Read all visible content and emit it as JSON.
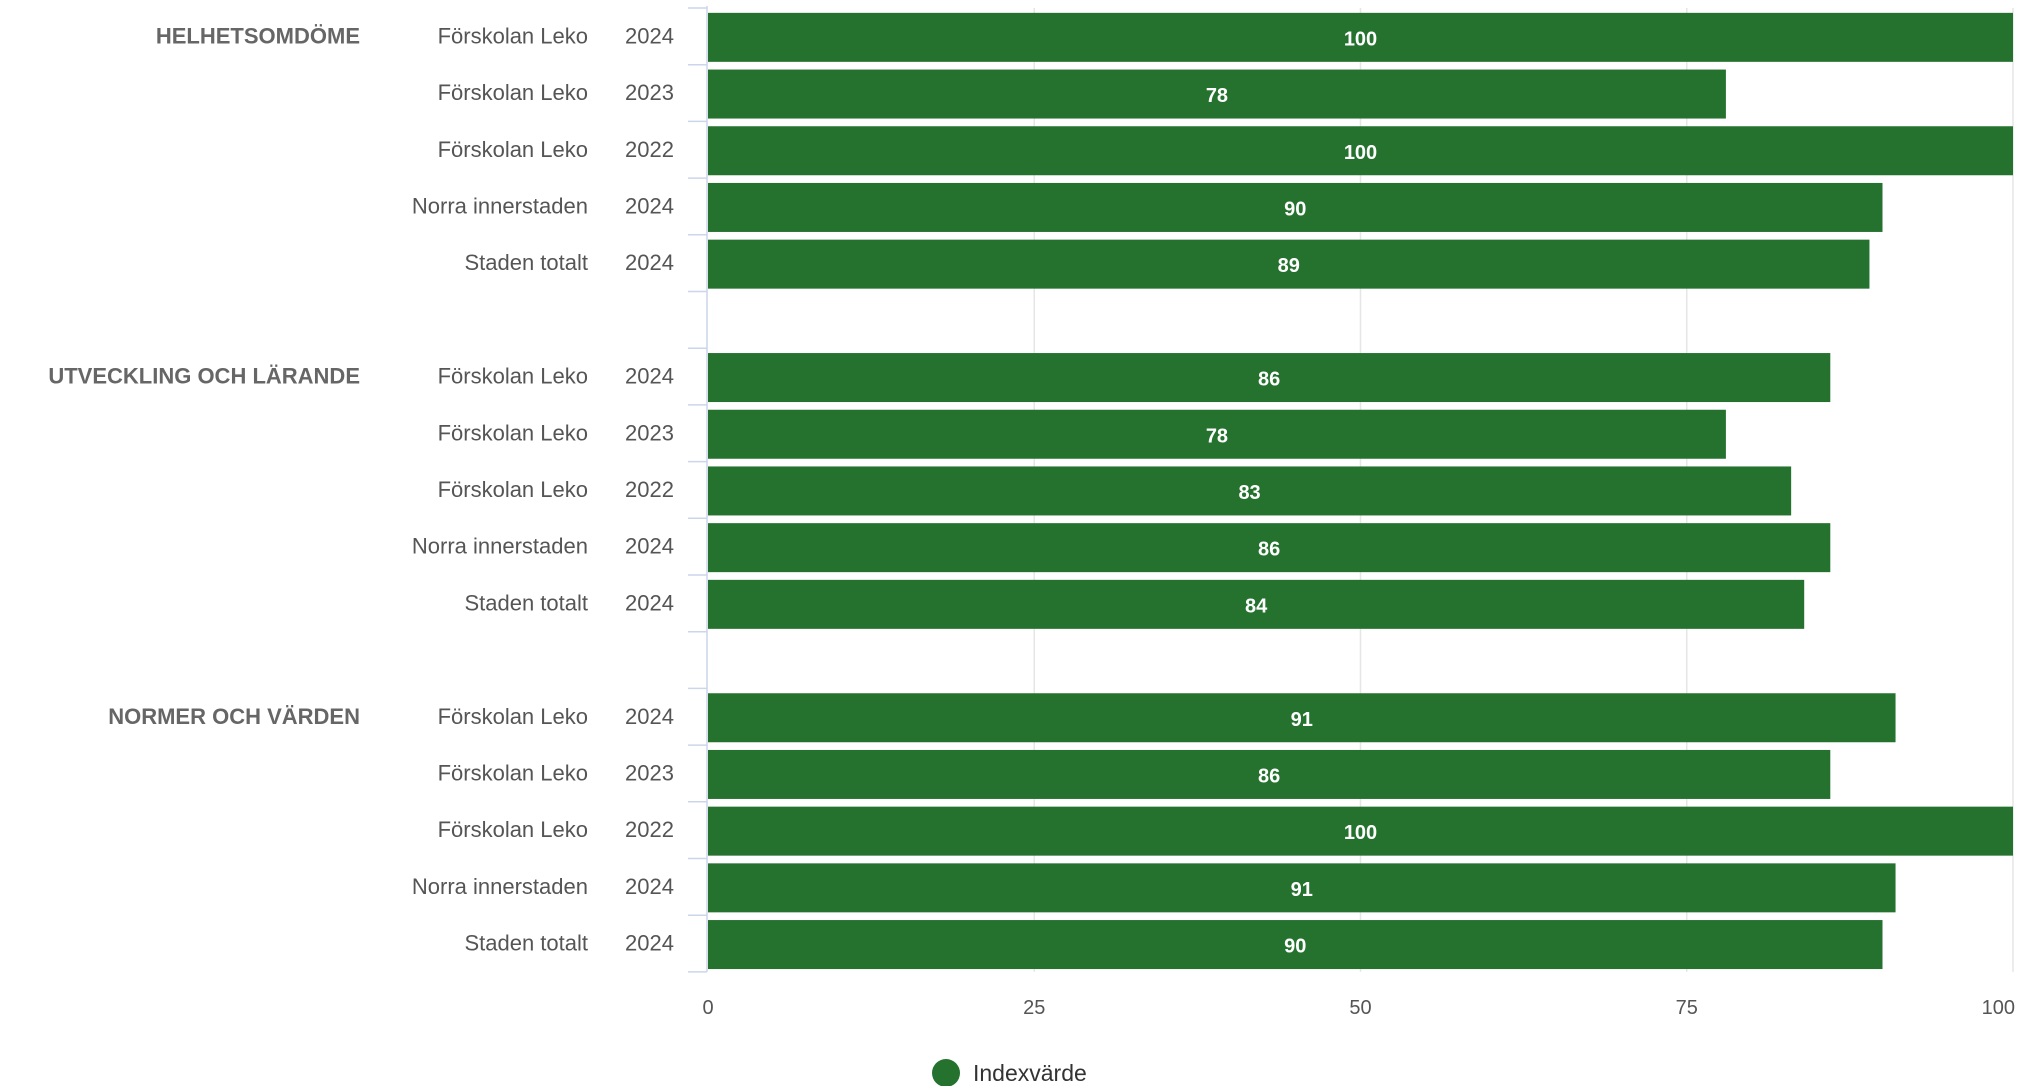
{
  "chart_data": {
    "type": "bar",
    "orientation": "horizontal",
    "xlim": [
      0,
      100
    ],
    "xticks": [
      0,
      25,
      50,
      75,
      100
    ],
    "grid": true,
    "legend_placement": "bottom",
    "colors": {
      "bar": "#25722f",
      "grid": "#e6e6e6",
      "axis": "#ccd6eb"
    },
    "series": [
      {
        "name": "Indexvärde"
      }
    ],
    "groups": [
      {
        "label": "HELHETSOMDÖME",
        "rows": [
          {
            "unit": "Förskolan Leko",
            "year": "2024",
            "value": 100
          },
          {
            "unit": "Förskolan Leko",
            "year": "2023",
            "value": 78
          },
          {
            "unit": "Förskolan Leko",
            "year": "2022",
            "value": 100
          },
          {
            "unit": "Norra innerstaden",
            "year": "2024",
            "value": 90
          },
          {
            "unit": "Staden totalt",
            "year": "2024",
            "value": 89
          }
        ]
      },
      {
        "label": "UTVECKLING OCH LÄRANDE",
        "rows": [
          {
            "unit": "Förskolan Leko",
            "year": "2024",
            "value": 86
          },
          {
            "unit": "Förskolan Leko",
            "year": "2023",
            "value": 78
          },
          {
            "unit": "Förskolan Leko",
            "year": "2022",
            "value": 83
          },
          {
            "unit": "Norra innerstaden",
            "year": "2024",
            "value": 86
          },
          {
            "unit": "Staden totalt",
            "year": "2024",
            "value": 84
          }
        ]
      },
      {
        "label": "NORMER OCH VÄRDEN",
        "rows": [
          {
            "unit": "Förskolan Leko",
            "year": "2024",
            "value": 91
          },
          {
            "unit": "Förskolan Leko",
            "year": "2023",
            "value": 86
          },
          {
            "unit": "Förskolan Leko",
            "year": "2022",
            "value": 100
          },
          {
            "unit": "Norra innerstaden",
            "year": "2024",
            "value": 91
          },
          {
            "unit": "Staden totalt",
            "year": "2024",
            "value": 90
          }
        ]
      }
    ]
  }
}
